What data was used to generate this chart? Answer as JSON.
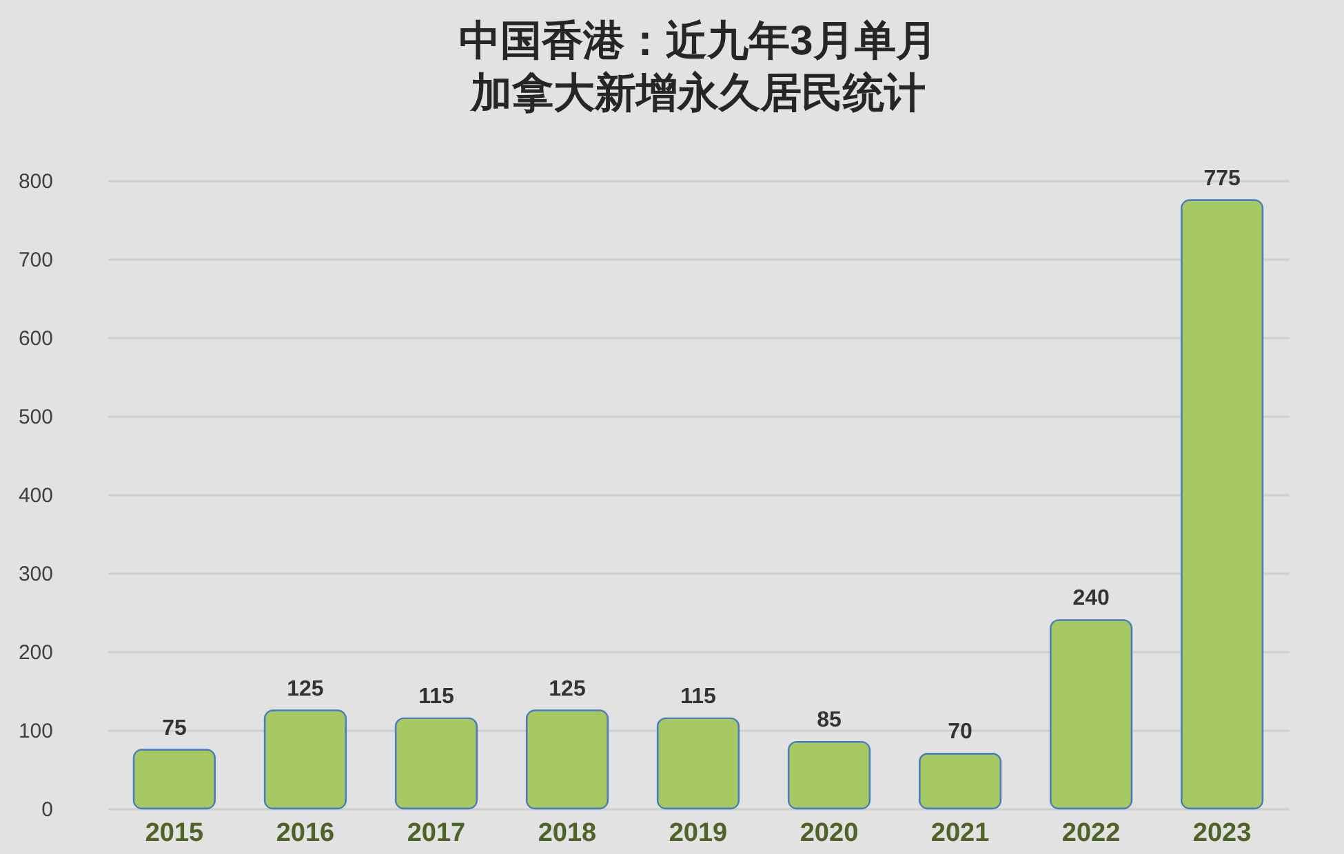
{
  "chart_data": {
    "type": "bar",
    "title": "中国香港：近九年3月单月",
    "subtitle": "加拿大新增永久居民统计",
    "categories": [
      "2015",
      "2016",
      "2017",
      "2018",
      "2019",
      "2020",
      "2021",
      "2022",
      "2023"
    ],
    "values": [
      75,
      125,
      115,
      125,
      115,
      85,
      70,
      240,
      775
    ],
    "color": "#a6c964",
    "ylim": [
      0,
      800
    ],
    "yticks": [
      0,
      100,
      200,
      300,
      400,
      500,
      600,
      700,
      800
    ],
    "grid": "y",
    "data_labels": true
  }
}
